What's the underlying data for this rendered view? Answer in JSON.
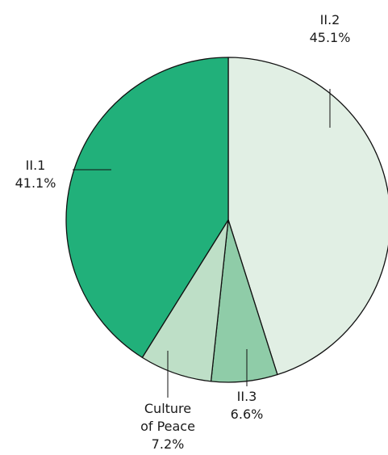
{
  "chart_data": {
    "type": "pie",
    "start_angle_deg": 0,
    "direction": "clockwise",
    "slices": [
      {
        "label_lines": [
          "II.2"
        ],
        "value": 45.1,
        "value_label": "45.1%",
        "color": "#e1efe4"
      },
      {
        "label_lines": [
          "II.3"
        ],
        "value": 6.6,
        "value_label": "6.6%",
        "color": "#8fcca8"
      },
      {
        "label_lines": [
          "Culture",
          "of Peace"
        ],
        "value": 7.2,
        "value_label": "7.2%",
        "color": "#bedfc7"
      },
      {
        "label_lines": [
          "II.1"
        ],
        "value": 41.1,
        "value_label": "41.1%",
        "color": "#21b07a"
      }
    ],
    "stroke_color": "#111111",
    "legend": "none",
    "title": ""
  }
}
